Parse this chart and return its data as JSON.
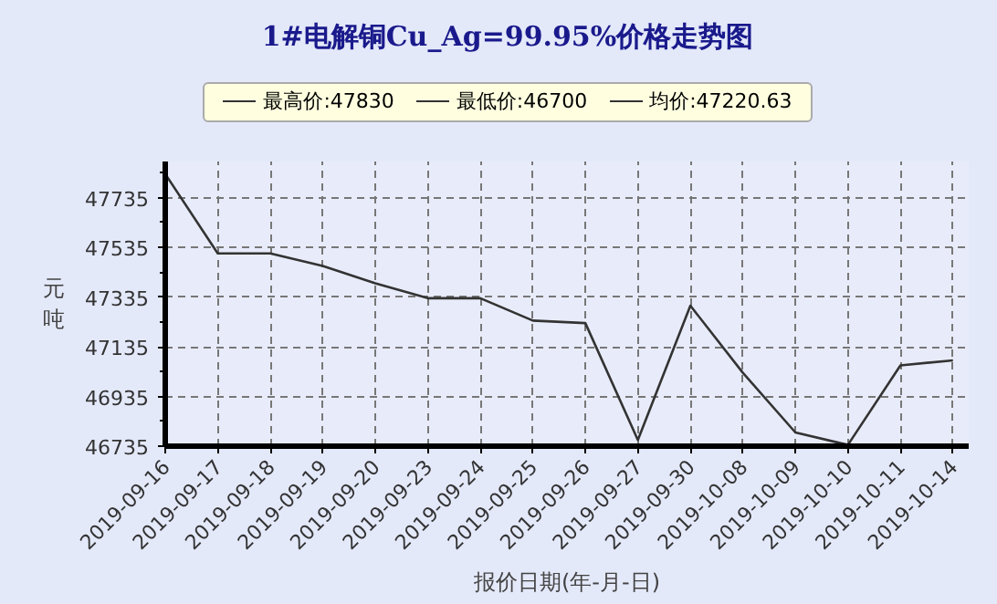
{
  "chart_data": {
    "type": "line",
    "title": "1#电解铜Cu_Ag=99.95%价格走势图",
    "xlabel": "报价日期(年-月-日)",
    "ylabel": "元吨",
    "annotations": [
      "最高价:47830",
      "最低价:46700",
      "均价:47220.63"
    ],
    "categories": [
      "2019-09-16",
      "2019-09-17",
      "2019-09-18",
      "2019-09-19",
      "2019-09-20",
      "2019-09-23",
      "2019-09-24",
      "2019-09-25",
      "2019-09-26",
      "2019-09-27",
      "2019-09-30",
      "2019-10-08",
      "2019-10-09",
      "2019-10-10",
      "2019-10-11",
      "2019-10-14"
    ],
    "series": [
      {
        "color": "#333333",
        "values": [
          47830,
          47510,
          47510,
          47460,
          47390,
          47330,
          47330,
          47240,
          47230,
          46760,
          47300,
          47030,
          46790,
          46740,
          47060,
          47080
        ]
      }
    ],
    "ylim": [
      46735,
      47880
    ],
    "yticks": [
      46735,
      46935,
      47135,
      47335,
      47535,
      47735
    ],
    "grid": true,
    "marker": "none",
    "line_style": "solid"
  }
}
